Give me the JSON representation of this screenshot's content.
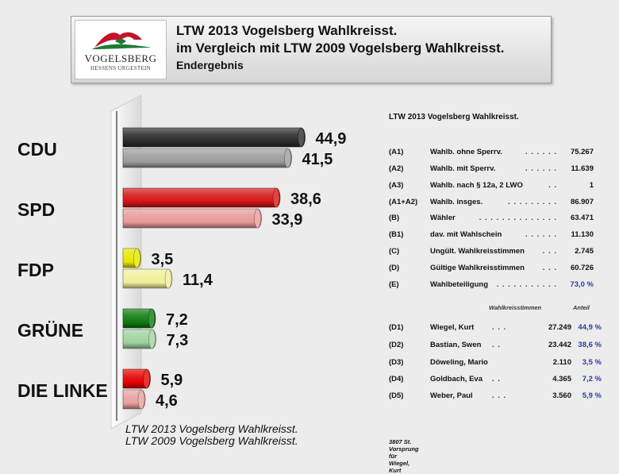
{
  "header": {
    "logo_name": "VOGELSBERG",
    "logo_tagline": "HESSENS URGESTEIN",
    "title_line1": "LTW 2013 Vogelsberg Wahlkreisst.",
    "title_line2": "im Vergleich mit LTW 2009 Vogelsberg Wahlkreisst.",
    "title_line3": "Endergebnis"
  },
  "colors": {
    "cdu_2013": "#2b2b2b",
    "cdu_2009": "#9c9c9c",
    "spd_2013": "#d41616",
    "spd_2009": "#e89a9a",
    "fdp_2013": "#e6e600",
    "fdp_2009": "#efef9a",
    "gruene_2013": "#0f7a0f",
    "gruene_2009": "#9ed29e",
    "linke_2013": "#e60000",
    "linke_2009": "#e8a0a0",
    "accent_blue": "#283fa0"
  },
  "chart_data": {
    "type": "bar",
    "orientation": "horizontal",
    "categories": [
      "CDU",
      "SPD",
      "FDP",
      "GRÜNE",
      "DIE LINKE"
    ],
    "series": [
      {
        "name": "LTW 2013 Vogelsberg Wahlkreisst.",
        "values": [
          44.9,
          38.6,
          3.5,
          7.2,
          5.9
        ],
        "labels": [
          "44,9",
          "38,6",
          "3,5",
          "7,2",
          "5,9"
        ]
      },
      {
        "name": "LTW 2009 Vogelsberg Wahlkreisst.",
        "values": [
          41.5,
          33.9,
          11.4,
          7.3,
          4.6
        ],
        "labels": [
          "41,5",
          "33,9",
          "11,4",
          "7,3",
          "4,6"
        ]
      }
    ],
    "legend_position": "bottom-left",
    "grid": false
  },
  "stats": {
    "title": "LTW 2013 Vogelsberg Wahlkreisst.",
    "rows": [
      {
        "code": "(A1)",
        "label": "Wahlb. ohne Sperrv.",
        "dots": ". . . . . .",
        "value": "75.267",
        "highlight": false
      },
      {
        "code": "(A2)",
        "label": "Wahlb. mit Sperrv.",
        "dots": ". . . . . .",
        "value": "11.639",
        "highlight": false
      },
      {
        "code": "(A3)",
        "label": "Wahlb. nach § 12a, 2 LWO",
        "dots": ". .",
        "value": "1",
        "highlight": false
      },
      {
        "code": "(A1+A2)",
        "label": "Wahlb. insges.",
        "dots": ". . . . . . . . .",
        "value": "86.907",
        "highlight": false
      },
      {
        "code": "(B)",
        "label": "Wähler",
        "dots": ". . . . . . . . . . . . . .",
        "value": "63.471",
        "highlight": false
      },
      {
        "code": "(B1)",
        "label": "dav. mit Wahlschein",
        "dots": ". . . . . .",
        "value": "11.130",
        "highlight": false
      },
      {
        "code": "(C)",
        "label": "Ungült. Wahlkreisstimmen",
        "dots": ". . .",
        "value": "2.745",
        "highlight": false
      },
      {
        "code": "(D)",
        "label": "Gültige Wahlkreisstimmen",
        "dots": ". . .",
        "value": "60.726",
        "highlight": false
      },
      {
        "code": "(E)",
        "label": "Wahlbeteiligung",
        "dots": ". . . . . . . . . . .",
        "value": "73,0 %",
        "highlight": true
      }
    ],
    "candidates_header_votes": "Wahlkreisstimmen",
    "candidates_header_share": "Anteil",
    "candidates": [
      {
        "code": "(D1)",
        "name": "Wiegel, Kurt",
        "dots": ". . .",
        "votes": "27.249",
        "share": "44,9 %"
      },
      {
        "code": "(D2)",
        "name": "Bastian, Swen",
        "dots": ". .",
        "votes": "23.442",
        "share": "38,6 %"
      },
      {
        "code": "(D3)",
        "name": "Döweling, Mario",
        "dots": "",
        "votes": "2.110",
        "share": "3,5 %"
      },
      {
        "code": "(D4)",
        "name": "Goldbach, Eva",
        "dots": ". .",
        "votes": "4.365",
        "share": "7,2 %"
      },
      {
        "code": "(D5)",
        "name": "Weber, Paul",
        "dots": ". . .",
        "votes": "3.560",
        "share": "5,9 %"
      }
    ],
    "footnote": "3807 St. Vorsprung für Wiegel, Kurt"
  }
}
